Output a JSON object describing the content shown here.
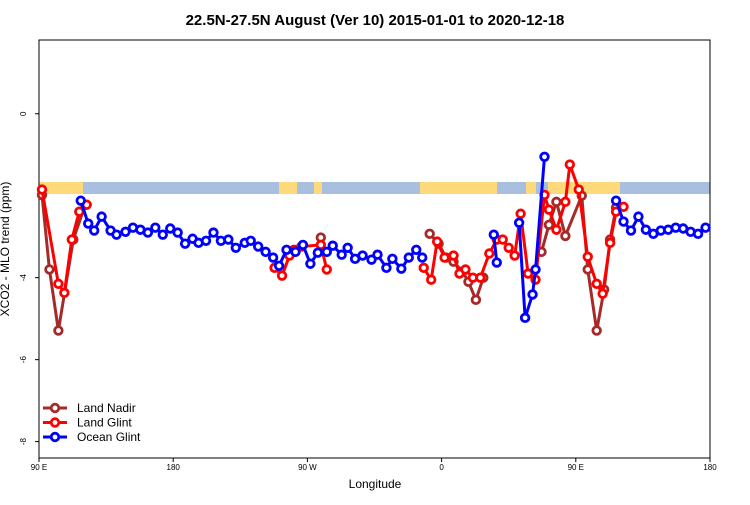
{
  "chart_data": {
    "type": "line",
    "title": "22.5N-27.5N August (Ver 10)   2015-01-01 to 2020-12-18",
    "xlabel": "Longitude",
    "ylabel": "XCO2 - MLO trend (ppm)",
    "xlim": [
      90,
      540
    ],
    "ylim": [
      -8.4,
      1.8
    ],
    "xticks": [
      {
        "value": 90,
        "label": "90 E"
      },
      180,
      {
        "value": 270,
        "label": "90 W"
      },
      {
        "value": 360,
        "label": "0"
      },
      {
        "value": 450,
        "label": "90 E"
      },
      {
        "value": 540,
        "label": "180"
      }
    ],
    "yticks": [
      0,
      -4,
      -6,
      -8
    ],
    "legend": "bottomleft",
    "series": [
      {
        "name": "Land Nadir",
        "color": "#a52a2a",
        "x": [
          92,
          97,
          103,
          113,
          121,
          null,
          279,
          null,
          352,
          358,
          363,
          368,
          374,
          378,
          383,
          388,
          null,
          427,
          432,
          437,
          443,
          454,
          458,
          464,
          469,
          473,
          477
        ],
        "values": [
          -1.98,
          -3.8,
          -5.29,
          -3.07,
          -2.22,
          null,
          -3.02,
          null,
          -2.93,
          -3.17,
          -3.51,
          -3.61,
          -3.85,
          -4.1,
          -4.54,
          -4.0,
          null,
          -3.37,
          -2.71,
          -2.15,
          -2.98,
          -2.0,
          -3.8,
          -5.29,
          -4.29,
          -3.07,
          -2.29
        ]
      },
      {
        "name": "Land Glint",
        "color": "#ff0000",
        "x": [
          92,
          103,
          107,
          112,
          117,
          122,
          null,
          248,
          253,
          258,
          261,
          266,
          279,
          283,
          null,
          348,
          353,
          357,
          362,
          368,
          372,
          376,
          381,
          386,
          392,
          397,
          401,
          405,
          409,
          413,
          418,
          423,
          429,
          432,
          437,
          443,
          446,
          452,
          458,
          464,
          468,
          473,
          477,
          482
        ],
        "values": [
          -1.85,
          -4.15,
          -4.37,
          -3.07,
          -2.39,
          -2.22,
          null,
          -3.76,
          -3.95,
          -3.46,
          -3.32,
          -3.24,
          -3.2,
          -3.8,
          null,
          -3.76,
          -4.05,
          -3.12,
          -3.51,
          -3.46,
          -3.9,
          -3.8,
          -4.0,
          -4.0,
          -3.41,
          -3.07,
          -3.07,
          -3.27,
          -3.46,
          -2.44,
          -3.9,
          -4.05,
          -1.98,
          -2.34,
          -2.83,
          -2.15,
          -1.24,
          -1.85,
          -3.49,
          -4.15,
          -4.39,
          -3.15,
          -2.39,
          -2.27
        ]
      },
      {
        "name": "Ocean Glint",
        "color": "#0000ff",
        "x": [
          118,
          123,
          127,
          132,
          138,
          142,
          148,
          153,
          158,
          163,
          168,
          173,
          178,
          183,
          188,
          193,
          197,
          202,
          207,
          212,
          217,
          222,
          228,
          232,
          237,
          242,
          247,
          251,
          256,
          262,
          267,
          272,
          277,
          283,
          287,
          293,
          297,
          302,
          307,
          313,
          317,
          323,
          327,
          333,
          338,
          343,
          347,
          null,
          395,
          397,
          null,
          412,
          416,
          421,
          423,
          429,
          null,
          477,
          482,
          487,
          492,
          497,
          502,
          507,
          512,
          517,
          522,
          527,
          532,
          537
        ],
        "values": [
          -2.12,
          -2.68,
          -2.85,
          -2.51,
          -2.85,
          -2.95,
          -2.88,
          -2.78,
          -2.83,
          -2.9,
          -2.78,
          -2.95,
          -2.8,
          -2.9,
          -3.17,
          -3.05,
          -3.15,
          -3.1,
          -2.9,
          -3.1,
          -3.07,
          -3.27,
          -3.15,
          -3.1,
          -3.24,
          -3.37,
          -3.51,
          -3.71,
          -3.32,
          -3.37,
          -3.2,
          -3.66,
          -3.39,
          -3.37,
          -3.22,
          -3.44,
          -3.27,
          -3.54,
          -3.46,
          -3.56,
          -3.44,
          -3.76,
          -3.54,
          -3.78,
          -3.51,
          -3.32,
          -3.51,
          null,
          -2.95,
          -3.63,
          null,
          -2.66,
          -4.98,
          -4.41,
          -3.8,
          -1.05,
          null,
          -2.12,
          -2.63,
          -2.85,
          -2.51,
          -2.83,
          -2.93,
          -2.85,
          -2.83,
          -2.78,
          -2.8,
          -2.88,
          -2.93,
          -2.78
        ]
      }
    ]
  }
}
